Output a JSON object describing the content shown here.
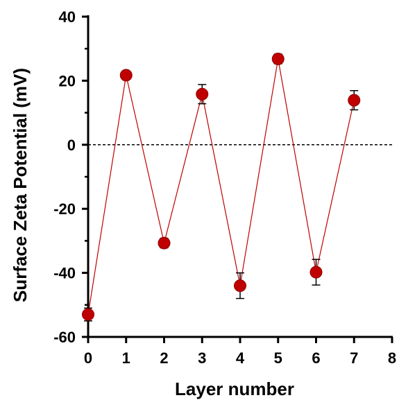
{
  "chart_data": {
    "type": "scatter",
    "title": "",
    "xlabel": "Layer number",
    "ylabel": "Surface Zeta Potential (mV)",
    "xlim": [
      0,
      8
    ],
    "ylim": [
      -60,
      40
    ],
    "xticks": [
      0,
      1,
      2,
      3,
      4,
      5,
      6,
      7,
      8
    ],
    "yticks": [
      -60,
      -40,
      -20,
      0,
      20,
      40
    ],
    "x_tick_labels": [
      "0",
      "1",
      "2",
      "3",
      "4",
      "5",
      "6",
      "7",
      "8"
    ],
    "y_tick_labels": [
      "-60",
      "-40",
      "-20",
      "0",
      "20",
      "40"
    ],
    "grid": false,
    "legend": "none",
    "reference_line": {
      "y": 0,
      "style": "dashed",
      "color": "#000000"
    },
    "series": [
      {
        "marker_color": "#c00000",
        "line_color": "#c00000",
        "connected": true,
        "points": [
          {
            "x": 0,
            "y": -53,
            "err": 2
          },
          {
            "x": 1,
            "y": 21.7,
            "err": 1
          },
          {
            "x": 2,
            "y": -30.7,
            "err": 1.5
          },
          {
            "x": 3,
            "y": 15.8,
            "err": 3
          },
          {
            "x": 4,
            "y": -44,
            "err": 4
          },
          {
            "x": 5,
            "y": 26.8,
            "err": 1.5
          },
          {
            "x": 6,
            "y": -39.8,
            "err": 4
          },
          {
            "x": 7,
            "y": 13.9,
            "err": 3
          }
        ]
      }
    ]
  }
}
